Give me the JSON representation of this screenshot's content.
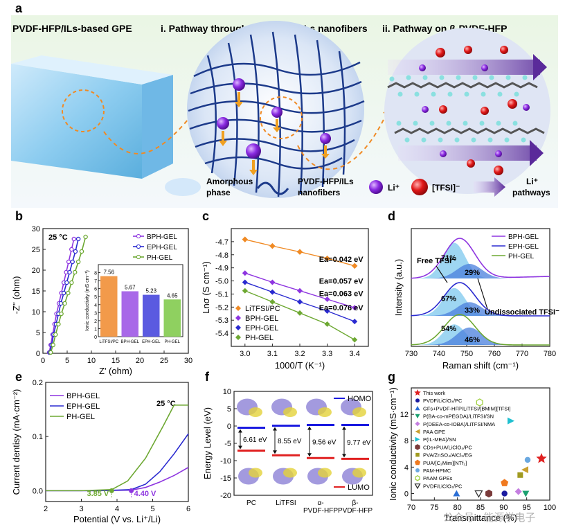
{
  "panel_a": {
    "label": "a",
    "title_left": "PVDF-HFP/ILs-based GPE",
    "title_mid": "i. Pathway through PVDF-HFP/ILs nanofibers",
    "title_right": "ii.  Pathway on β-PVDF-HFP",
    "legend": {
      "amorphous_1": "Amorphous",
      "amorphous_2": "phase",
      "nanofiber_1": "PVDF-HFP/ILs",
      "nanofiber_2": "nanofibers",
      "li": "Li⁺",
      "tfsi": "[TFSI]⁻",
      "path_1": "Li⁺",
      "path_2": "pathways"
    }
  },
  "chart_data": [
    {
      "id": "b",
      "type": "line",
      "annotation": "25 °C",
      "xlabel": "Z' (ohm)",
      "ylabel": "-Z'' (ohm)",
      "xlim": [
        0,
        30
      ],
      "ylim": [
        0,
        30
      ],
      "xticks": [
        0,
        5,
        10,
        15,
        20,
        25,
        30
      ],
      "yticks": [
        0,
        5,
        10,
        15,
        20,
        25,
        30
      ],
      "series": [
        {
          "name": "BPH-GEL",
          "color": "#8e35e0",
          "x": [
            1.3,
            1.6,
            2.0,
            2.4,
            2.8,
            3.3,
            3.8,
            4.3,
            4.8,
            5.3,
            5.9,
            6.4
          ],
          "y": [
            0.2,
            2.0,
            4.5,
            7.0,
            9.5,
            12.0,
            14.5,
            17.0,
            19.5,
            22.0,
            25.0,
            27.5
          ]
        },
        {
          "name": "EPH-GEL",
          "color": "#2a2ad0",
          "x": [
            1.4,
            1.8,
            2.2,
            2.7,
            3.2,
            3.7,
            4.3,
            4.9,
            5.5,
            6.1,
            6.7,
            7.3
          ],
          "y": [
            0.2,
            2.0,
            4.5,
            7.0,
            9.5,
            12.0,
            14.5,
            17.0,
            19.5,
            22.0,
            24.5,
            27.5
          ]
        },
        {
          "name": "PH-GEL",
          "color": "#6da832",
          "x": [
            1.6,
            2.1,
            2.6,
            3.2,
            3.8,
            4.5,
            5.2,
            5.9,
            6.6,
            7.3,
            8.0,
            8.8
          ],
          "y": [
            0.2,
            2.0,
            4.5,
            7.0,
            9.5,
            12.0,
            14.5,
            17.0,
            19.5,
            22.0,
            24.5,
            28.0
          ]
        }
      ],
      "inset": {
        "type": "bar",
        "ylabel": "Ionic conductivity (mS cm⁻¹)",
        "ylim": [
          0,
          9
        ],
        "yticks": [
          0,
          1,
          2,
          3,
          4,
          5,
          6,
          7,
          8
        ],
        "categories": [
          "LiTFSI/PC",
          "BPH-GEL",
          "EPH-GEL",
          "PH-GEL"
        ],
        "values": [
          7.56,
          5.67,
          5.23,
          4.65
        ],
        "value_labels": [
          "7.56",
          "5.67",
          "5.23",
          "4.65"
        ],
        "colors": [
          "#f29a4a",
          "#a868e8",
          "#5a5ae0",
          "#8fd060"
        ]
      }
    },
    {
      "id": "c",
      "type": "line",
      "xlabel": "1000/T (K⁻¹)",
      "ylabel": "Lnσ (S cm⁻¹)",
      "xlim": [
        2.95,
        3.45
      ],
      "ylim": [
        -5.5,
        -4.6
      ],
      "xticks": [
        3.0,
        3.1,
        3.2,
        3.3,
        3.4
      ],
      "yticks": [
        -4.7,
        -4.8,
        -4.9,
        -5.0,
        -5.1,
        -5.2,
        -5.3,
        -5.4
      ],
      "series": [
        {
          "name": "LiTFSI/PC",
          "color": "#f08a24",
          "x": [
            3.0,
            3.1,
            3.2,
            3.3,
            3.4
          ],
          "y": [
            -4.683,
            -4.733,
            -4.778,
            -4.828,
            -4.885
          ],
          "ea": "Ea=0.042 eV"
        },
        {
          "name": "BPH-GEL",
          "color": "#8e35e0",
          "x": [
            3.0,
            3.1,
            3.2,
            3.3,
            3.4
          ],
          "y": [
            -4.94,
            -5.01,
            -5.075,
            -5.14,
            -5.205
          ],
          "ea": "Ea=0.057 eV"
        },
        {
          "name": "EPH-GEL",
          "color": "#2a2ad0",
          "x": [
            3.0,
            3.1,
            3.2,
            3.3,
            3.4
          ],
          "y": [
            -5.01,
            -5.085,
            -5.16,
            -5.23,
            -5.31
          ],
          "ea": "Ea=0.063 eV"
        },
        {
          "name": "PH-GEL",
          "color": "#6da832",
          "x": [
            3.0,
            3.1,
            3.2,
            3.3,
            3.4
          ],
          "y": [
            -5.075,
            -5.16,
            -5.245,
            -5.33,
            -5.45
          ],
          "ea": "Ea=0.076 eV"
        }
      ]
    },
    {
      "id": "d",
      "type": "area",
      "xlabel": "Raman shift (cm⁻¹)",
      "ylabel": "Intensity (a.u.)",
      "xlim": [
        730,
        780
      ],
      "xticks": [
        730,
        740,
        750,
        760,
        770,
        780
      ],
      "series": [
        {
          "name": "BPH-GEL",
          "color": "#8e35e0",
          "free": "71%",
          "undissociated": "29%"
        },
        {
          "name": "EPH-GEL",
          "color": "#2a2ad0",
          "free": "67%",
          "undissociated": "33%"
        },
        {
          "name": "PH-GEL",
          "color": "#6da832",
          "free": "54%",
          "undissociated": "46%"
        }
      ],
      "annot_free": "Free TFSI⁻",
      "annot_undiss": "Undissociated TFSI⁻"
    },
    {
      "id": "e",
      "type": "line",
      "annotation": "25 °C",
      "xlabel": "Potential (V vs. Li⁺/Li)",
      "ylabel": "Current dentisy (mA·cm⁻²)",
      "xlim": [
        2,
        6
      ],
      "ylim": [
        -0.02,
        0.2
      ],
      "xticks": [
        2,
        3,
        4,
        5,
        6
      ],
      "yticks": [
        0.0,
        0.1,
        0.2
      ],
      "series": [
        {
          "name": "BPH-GEL",
          "color": "#8e35e0",
          "x": [
            2.0,
            3.5,
            4.4,
            4.8,
            5.2,
            5.6,
            6.0
          ],
          "y": [
            0.0,
            0.0,
            0.001,
            0.006,
            0.016,
            0.028,
            0.043
          ]
        },
        {
          "name": "EPH-GEL",
          "color": "#2a2ad0",
          "x": [
            2.0,
            3.5,
            4.4,
            4.8,
            5.2,
            5.6,
            6.0
          ],
          "y": [
            0.0,
            0.0,
            0.002,
            0.012,
            0.035,
            0.068,
            0.105
          ]
        },
        {
          "name": "PH-GEL",
          "color": "#6da832",
          "x": [
            2.0,
            3.0,
            3.85,
            4.3,
            4.8,
            5.3,
            5.6,
            6.0
          ],
          "y": [
            0.0,
            0.0,
            0.002,
            0.018,
            0.06,
            0.12,
            0.158,
            0.158
          ]
        }
      ],
      "markers": [
        {
          "label": "3.85 V",
          "x": 3.85,
          "color": "#6da832"
        },
        {
          "label": "4.40 V",
          "x": 4.4,
          "color": "#8e35e0"
        }
      ]
    },
    {
      "id": "f",
      "type": "bar",
      "ylabel": "Energy Level (eV)",
      "ylim": [
        -20,
        10
      ],
      "yticks": [
        10,
        5,
        0,
        -5,
        -10,
        -15,
        -20
      ],
      "categories": [
        "PC",
        "LiTFSI",
        "α-\nPVDF-HFP",
        "β-\nPVDF-HFP"
      ],
      "homo": [
        -0.5,
        0.1,
        0.3,
        0.3
      ],
      "lumo": [
        -7.1,
        -8.45,
        -9.26,
        -9.47
      ],
      "gaps": [
        "6.61 eV",
        "8.55 eV",
        "9.56 eV",
        "9.77 eV"
      ],
      "legend": {
        "homo": "HOMO",
        "lumo": "LUMO",
        "homo_color": "#1a1ae0",
        "lumo_color": "#e02020"
      }
    },
    {
      "id": "g",
      "type": "scatter",
      "xlabel": "Transmittance (%)",
      "ylabel": "Ionic conductivity (mS·cm⁻¹)",
      "xlim": [
        70,
        100
      ],
      "ylim": [
        -1,
        16
      ],
      "xticks": [
        70,
        75,
        80,
        85,
        90,
        95,
        100
      ],
      "yticks": [
        0,
        4,
        8,
        12
      ],
      "points": [
        {
          "name": "This work",
          "marker": "star",
          "color": "#e02020",
          "x": 98.2,
          "y": 5.3
        },
        {
          "name": "PVDF/LiClO₄/PC",
          "marker": "circle",
          "color": "#1a1aa0",
          "x": 90.2,
          "y": 0.0
        },
        {
          "name": "GFs+PVDF-HFP/LiTFSI/[BMIM][TFSI]",
          "marker": "triangle",
          "color": "#2c6fd6",
          "x": 79.8,
          "y": 0.0
        },
        {
          "name": "P(BA-co-mPEGDA)/LiTFSI/SN",
          "marker": "tri-down",
          "color": "#1aa070",
          "x": 94.8,
          "y": 0.0
        },
        {
          "name": "P(DEEA-co-IOBA)/LiTFSI/NMA",
          "marker": "diamond",
          "color": "#c47ee0",
          "x": 93.2,
          "y": 0.3
        },
        {
          "name": "PAA GPE",
          "marker": "tri-left",
          "color": "#c9a030",
          "x": 94.6,
          "y": 3.6
        },
        {
          "name": "P(IL-MEA)/SN",
          "marker": "tri-right",
          "color": "#20c0d0",
          "x": 91.6,
          "y": 11.0
        },
        {
          "name": "CDs+PUA/LiClO₄/PC",
          "marker": "hexagon",
          "color": "#7a3a3a",
          "x": 86.8,
          "y": 0.0
        },
        {
          "name": "PVA/ZnSO₄/AlCl₃/EG",
          "marker": "square",
          "color": "#a09a20",
          "x": 93.6,
          "y": 2.8
        },
        {
          "name": "PUA/[C₂Mim][NTf₂]",
          "marker": "pentagon",
          "color": "#f07a20",
          "x": 90.2,
          "y": 1.6
        },
        {
          "name": "PAM-HPMC",
          "marker": "sphere",
          "color": "#6aa8e0",
          "x": 95.2,
          "y": 5.1
        },
        {
          "name": "PAAM GPEs",
          "marker": "half-hex",
          "color": "#a0d040",
          "x": 84.8,
          "y": 13.8
        },
        {
          "name": "PVDF/LiClO₄/PC",
          "marker": "tri-down-open",
          "color": "#333333",
          "x": 84.6,
          "y": 0.0
        }
      ]
    }
  ],
  "watermark": "公众号 · 能源学电子"
}
